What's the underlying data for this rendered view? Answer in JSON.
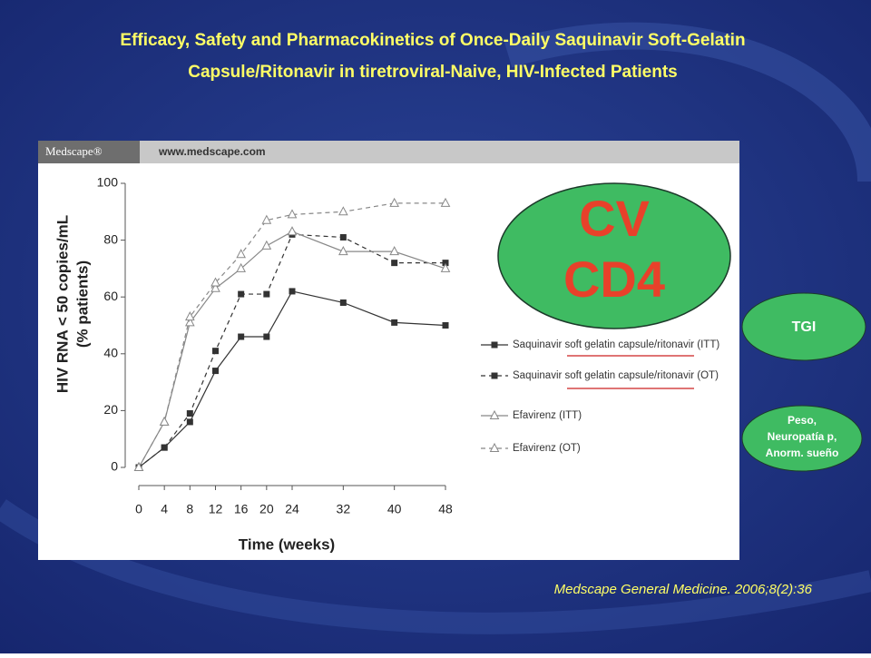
{
  "slide": {
    "title_lines": [
      "Efficacy, Safety and Pharmacokinetics of Once-Daily Saquinavir Soft-Gelatin",
      "Capsule/Ritonavir in tiretroviral-Naive, HIV-Infected Patients"
    ],
    "citation": "Medscape General Medicine.  2006;8(2):36",
    "main_bubble": [
      "CV",
      "CD4"
    ],
    "tgi_bubble": "TGI",
    "side_bubble": [
      "Peso,",
      "Neuropatía p,",
      "Anorm. sueño"
    ],
    "brand": "Medscape®",
    "url": "www.medscape.com"
  },
  "chart_data": {
    "type": "line",
    "x_label": "Time (weeks)",
    "y_label_lines": [
      "HIV RNA < 50 copies/mL",
      "(% patients)"
    ],
    "x": [
      0,
      4,
      8,
      12,
      16,
      20,
      24,
      32,
      40,
      48
    ],
    "xlim": [
      0,
      48
    ],
    "xticks": [
      0,
      4,
      8,
      12,
      16,
      20,
      24,
      32,
      40,
      48
    ],
    "ylim": [
      0,
      100
    ],
    "yticks": [
      0,
      20,
      40,
      60,
      80,
      100
    ],
    "series": [
      {
        "name": "Saquinavir soft gelatin capsule/ritonavir (ITT)",
        "color": "#333333",
        "marker": "square",
        "dashed": false,
        "values": [
          0,
          7,
          16,
          34,
          46,
          46,
          62,
          58,
          51,
          50
        ]
      },
      {
        "name": "Saquinavir soft gelatin capsule/ritonavir (OT)",
        "color": "#333333",
        "marker": "square",
        "dashed": true,
        "values": [
          0,
          7,
          19,
          41,
          61,
          61,
          82,
          81,
          72,
          72
        ]
      },
      {
        "name": "Efavirenz (ITT)",
        "color": "#888888",
        "marker": "triangle",
        "dashed": false,
        "values": [
          0,
          16,
          51,
          63,
          70,
          78,
          83,
          76,
          76,
          70
        ]
      },
      {
        "name": "Efavirenz (OT)",
        "color": "#888888",
        "marker": "triangle",
        "dashed": true,
        "values": [
          0,
          16,
          53,
          65,
          75,
          87,
          89,
          90,
          93,
          93
        ]
      }
    ]
  }
}
